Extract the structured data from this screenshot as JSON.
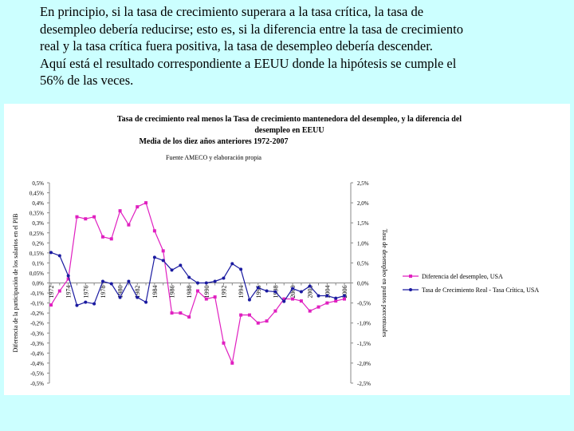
{
  "header": {
    "lines": [
      "En principio, si la tasa de crecimiento superara a la tasa crítica, la tasa de",
      "desempleo debería reducirse; esto es, si la diferencia entre la tasa de crecimiento",
      "real y la tasa crítica fuera positiva, la tasa de desempleo debería descender.",
      "Aquí está el resultado correspondiente a EEUU donde la hipótesis se cumple el",
      "56% de las veces."
    ]
  },
  "chart_data": {
    "type": "line",
    "title": [
      "Tasa de crecimiento real menos la Tasa de crecimiento mantenedora del desempleo, y la diferencia del",
      "desempleo en EEUU",
      "Media de los diez años anteriores 1972-2007"
    ],
    "subtitle": "Fuente AMECO y elaboración propia",
    "y_label": "Diferencia de la participación de los salarios en el PIB",
    "y2_label": "Tasa de desempleo en puntos porcentuales",
    "categories": [
      "1972",
      null,
      "1974",
      null,
      "1976",
      null,
      "1978",
      null,
      "1980",
      null,
      "1982",
      null,
      "1984",
      null,
      "1986",
      null,
      "1988",
      null,
      "1990",
      null,
      "1992",
      null,
      "1994",
      null,
      "1996",
      null,
      "1998",
      null,
      "2000",
      null,
      "2002",
      null,
      "2004",
      null,
      "2006"
    ],
    "ylim": [
      -0.5,
      0.5
    ],
    "yticks": [
      {
        "value": 0.5,
        "label": "0,5%"
      },
      {
        "value": 0.45,
        "label": "0,45%"
      },
      {
        "value": 0.4,
        "label": "0,4%"
      },
      {
        "value": 0.35,
        "label": "0,35%"
      },
      {
        "value": 0.3,
        "label": "0,3%"
      },
      {
        "value": 0.25,
        "label": "0,25%"
      },
      {
        "value": 0.2,
        "label": "0,2%"
      },
      {
        "value": 0.15,
        "label": "0,15%"
      },
      {
        "value": 0.1,
        "label": "0,1%"
      },
      {
        "value": 0.05,
        "label": "0,05%"
      },
      {
        "value": 0,
        "label": "0,0%"
      },
      {
        "value": -0.05,
        "label": "-0,1%"
      },
      {
        "value": -0.1,
        "label": "-0,1%"
      },
      {
        "value": -0.15,
        "label": "-0,2%"
      },
      {
        "value": -0.2,
        "label": "-0,2%"
      },
      {
        "value": -0.25,
        "label": "-0,3%"
      },
      {
        "value": -0.3,
        "label": "-0,3%"
      },
      {
        "value": -0.35,
        "label": "-0,4%"
      },
      {
        "value": -0.4,
        "label": "-0,4%"
      },
      {
        "value": -0.45,
        "label": "-0,5%"
      },
      {
        "value": -0.5,
        "label": "-0,5%"
      }
    ],
    "y2lim": [
      -2.5,
      2.5
    ],
    "y2ticks": [
      {
        "value": 2.5,
        "label": "2,5%"
      },
      {
        "value": 2,
        "label": "2,0%"
      },
      {
        "value": 1.5,
        "label": "1,5%"
      },
      {
        "value": 1,
        "label": "1,0%"
      },
      {
        "value": 0.5,
        "label": "0,5%"
      },
      {
        "value": 0,
        "label": "0,0%"
      },
      {
        "value": -0.5,
        "label": "-0,5%"
      },
      {
        "value": -1,
        "label": "-1,0%"
      },
      {
        "value": -1.5,
        "label": "-1,5%"
      },
      {
        "value": -2,
        "label": "-2,0%"
      },
      {
        "value": -2.5,
        "label": "-2,5%"
      }
    ],
    "series": [
      {
        "name": "Diferencia del desempleo, USA",
        "color": "#e020c0",
        "marker": "square",
        "values": [
          -0.11,
          -0.04,
          0.02,
          0.33,
          0.32,
          0.33,
          0.23,
          0.22,
          0.36,
          0.29,
          0.38,
          0.4,
          0.26,
          0.16,
          -0.15,
          -0.15,
          -0.17,
          -0.04,
          -0.08,
          -0.07,
          -0.3,
          -0.4,
          -0.16,
          -0.16,
          -0.2,
          -0.19,
          -0.14,
          -0.08,
          -0.08,
          -0.09,
          -0.14,
          -0.12,
          -0.1,
          -0.09,
          -0.08
        ]
      },
      {
        "name": "Tasa de Crecimiento Real - Tasa Crítica, USA",
        "color": "#1a1aa0",
        "marker": "circle",
        "axis": "y2",
        "values": [
          0.76,
          0.68,
          0.18,
          -0.56,
          -0.48,
          -0.52,
          0.04,
          -0.02,
          -0.36,
          0.04,
          -0.36,
          -0.48,
          0.64,
          0.56,
          0.32,
          0.44,
          0.14,
          0,
          0,
          0.04,
          0.12,
          0.48,
          0.34,
          -0.42,
          -0.12,
          -0.2,
          -0.22,
          -0.46,
          -0.14,
          -0.22,
          -0.08,
          -0.32,
          -0.32,
          -0.38,
          -0.32
        ]
      }
    ]
  }
}
